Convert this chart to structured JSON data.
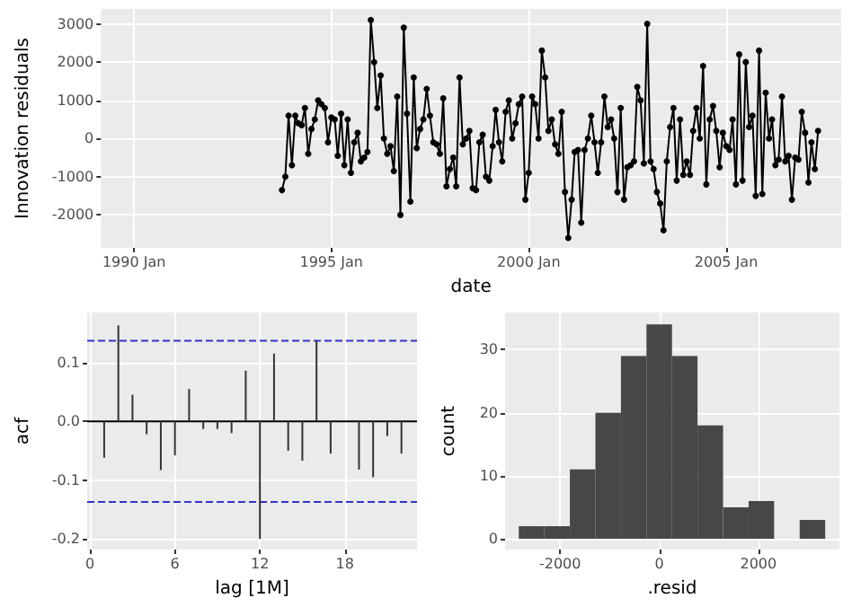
{
  "chart_data": [
    {
      "type": "line",
      "xlabel": "date",
      "ylabel": "Innovation residuals",
      "marker": "circle",
      "grid": true,
      "xlim": [
        "1989-03",
        "2007-12"
      ],
      "xticks": [
        {
          "value": "1990-01",
          "label": "1990 Jan"
        },
        {
          "value": "1995-01",
          "label": "1995 Jan"
        },
        {
          "value": "2000-01",
          "label": "2000 Jan"
        },
        {
          "value": "2005-01",
          "label": "2005 Jan"
        }
      ],
      "ylim": [
        -2860,
        3390
      ],
      "yticks": [
        -2000,
        -1000,
        0,
        1000,
        2000,
        3000
      ],
      "x": [
        "1993-10",
        "1993-11",
        "1993-12",
        "1994-01",
        "1994-02",
        "1994-03",
        "1994-04",
        "1994-05",
        "1994-06",
        "1994-07",
        "1994-08",
        "1994-09",
        "1994-10",
        "1994-11",
        "1994-12",
        "1995-01",
        "1995-02",
        "1995-03",
        "1995-04",
        "1995-05",
        "1995-06",
        "1995-07",
        "1995-08",
        "1995-09",
        "1995-10",
        "1995-11",
        "1995-12",
        "1996-01",
        "1996-02",
        "1996-03",
        "1996-04",
        "1996-05",
        "1996-06",
        "1996-07",
        "1996-08",
        "1996-09",
        "1996-10",
        "1996-11",
        "1996-12",
        "1997-01",
        "1997-02",
        "1997-03",
        "1997-04",
        "1997-05",
        "1997-06",
        "1997-07",
        "1997-08",
        "1997-09",
        "1997-10",
        "1997-11",
        "1997-12",
        "1998-01",
        "1998-02",
        "1998-03",
        "1998-04",
        "1998-05",
        "1998-06",
        "1998-07",
        "1998-08",
        "1998-09",
        "1998-10",
        "1998-11",
        "1998-12",
        "1999-01",
        "1999-02",
        "1999-03",
        "1999-04",
        "1999-05",
        "1999-06",
        "1999-07",
        "1999-08",
        "1999-09",
        "1999-10",
        "1999-11",
        "1999-12",
        "2000-01",
        "2000-02",
        "2000-03",
        "2000-04",
        "2000-05",
        "2000-06",
        "2000-07",
        "2000-08",
        "2000-09",
        "2000-10",
        "2000-11",
        "2000-12",
        "2001-01",
        "2001-02",
        "2001-03",
        "2001-04",
        "2001-05",
        "2001-06",
        "2001-07",
        "2001-08",
        "2001-09",
        "2001-10",
        "2001-11",
        "2001-12",
        "2002-01",
        "2002-02",
        "2002-03",
        "2002-04",
        "2002-05",
        "2002-06",
        "2002-07",
        "2002-08",
        "2002-09",
        "2002-10",
        "2002-11",
        "2002-12",
        "2003-01",
        "2003-02",
        "2003-03",
        "2003-04",
        "2003-05",
        "2003-06",
        "2003-07",
        "2003-08",
        "2003-09",
        "2003-10",
        "2003-11",
        "2003-12",
        "2004-01",
        "2004-02",
        "2004-03",
        "2004-04",
        "2004-05",
        "2004-06",
        "2004-07",
        "2004-08",
        "2004-09",
        "2004-10",
        "2004-11",
        "2004-12",
        "2005-01",
        "2005-02",
        "2005-03",
        "2005-04",
        "2005-05",
        "2005-06",
        "2005-07",
        "2005-08",
        "2005-09",
        "2005-10",
        "2005-11",
        "2005-12",
        "2006-01",
        "2006-02",
        "2006-03",
        "2006-04",
        "2006-05",
        "2006-06",
        "2006-07",
        "2006-08",
        "2006-09",
        "2006-10",
        "2006-11",
        "2006-12",
        "2007-01",
        "2007-02",
        "2007-03",
        "2007-04",
        "2007-05"
      ],
      "series": [
        {
          "color": "#000000",
          "values": [
            -1350,
            -1000,
            600,
            -700,
            600,
            400,
            350,
            800,
            -400,
            250,
            500,
            1000,
            900,
            800,
            -100,
            550,
            500,
            -450,
            650,
            -700,
            500,
            -900,
            -100,
            150,
            -600,
            -500,
            -350,
            3100,
            2000,
            800,
            1650,
            0,
            -400,
            -200,
            -850,
            1100,
            -2000,
            2900,
            650,
            -1650,
            1600,
            -250,
            250,
            500,
            1300,
            600,
            -100,
            -150,
            -400,
            1050,
            -1250,
            -800,
            -500,
            -1250,
            1600,
            -150,
            0,
            200,
            -1300,
            -1350,
            -100,
            100,
            -1000,
            -1100,
            -200,
            750,
            -100,
            -600,
            700,
            1000,
            0,
            400,
            900,
            1100,
            -1600,
            -900,
            1100,
            900,
            0,
            2300,
            1600,
            200,
            500,
            -150,
            -400,
            700,
            -1400,
            -2600,
            -1600,
            -350,
            -300,
            -2200,
            -300,
            0,
            600,
            -100,
            -900,
            -100,
            1100,
            300,
            500,
            0,
            -1400,
            800,
            -1600,
            -750,
            -700,
            -600,
            1350,
            1000,
            -650,
            3000,
            -600,
            -800,
            -1400,
            -1700,
            -2400,
            -600,
            300,
            800,
            -1100,
            500,
            -950,
            -600,
            -950,
            200,
            800,
            0,
            1900,
            -1200,
            500,
            850,
            200,
            -750,
            150,
            -200,
            -300,
            500,
            -1200,
            2200,
            -1100,
            2000,
            300,
            600,
            -1500,
            2300,
            -1450,
            1200,
            0,
            500,
            -700,
            -550,
            1100,
            -600,
            -450,
            -1600,
            -500,
            -550,
            700,
            150,
            -1150,
            -100,
            -800,
            200
          ]
        }
      ]
    },
    {
      "type": "bar",
      "xlabel": "lag [1M]",
      "ylabel": "acf",
      "grid": true,
      "xlim": [
        -0.2,
        23.1
      ],
      "xticks": [
        0,
        6,
        12,
        18
      ],
      "ylim": [
        -0.218,
        0.185
      ],
      "yticks": [
        -0.2,
        -0.1,
        {
          "value": 0,
          "label": "0.0"
        },
        0.1
      ],
      "x": [
        1,
        2,
        3,
        4,
        5,
        6,
        7,
        8,
        9,
        10,
        11,
        12,
        13,
        14,
        15,
        16,
        17,
        18,
        19,
        20,
        21,
        22
      ],
      "series": [
        {
          "color": "#333333",
          "values": [
            -0.062,
            0.163,
            0.045,
            -0.022,
            -0.083,
            -0.058,
            0.055,
            -0.013,
            -0.013,
            -0.02,
            0.086,
            -0.2,
            0.115,
            -0.05,
            -0.067,
            0.137,
            -0.055,
            null,
            -0.082,
            -0.095,
            -0.025,
            -0.055
          ]
        }
      ],
      "ref_lines": [
        {
          "axis": "y",
          "value": 0,
          "color": "#000000",
          "line_style": "solid"
        },
        {
          "axis": "y",
          "value": 0.137,
          "color": "#3333cc",
          "line_style": "dashed"
        },
        {
          "axis": "y",
          "value": -0.137,
          "color": "#3333cc",
          "line_style": "dashed"
        }
      ]
    },
    {
      "type": "histogram",
      "xlabel": ".resid",
      "ylabel": "count",
      "grid": true,
      "xlim": [
        -3109,
        3634
      ],
      "xticks": [
        -2000,
        0,
        2000
      ],
      "ylim": [
        -1.7,
        35.9
      ],
      "yticks": [
        0,
        10,
        20,
        30
      ],
      "bins": [
        -2832.5,
        -2317.5,
        -1802.5,
        -1287.5,
        -772.5,
        -257.5,
        257.5,
        772.5,
        1287.5,
        1802.5,
        2317.5,
        2832.5,
        3347.5
      ],
      "series": [
        {
          "color": "#474747",
          "values": [
            2,
            2,
            11,
            20,
            29,
            34,
            29,
            18,
            5,
            6,
            0,
            3
          ]
        }
      ]
    }
  ]
}
